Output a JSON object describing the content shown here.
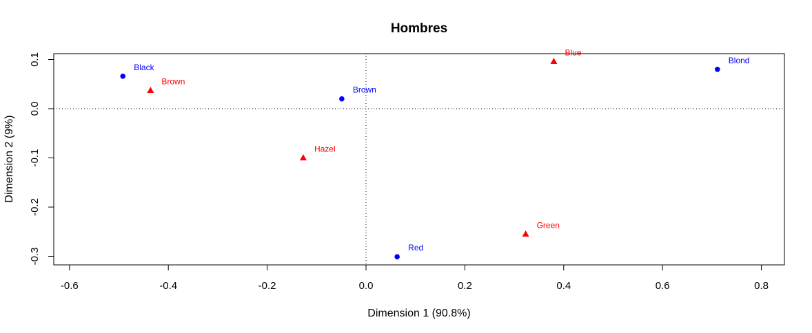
{
  "chart_data": {
    "type": "scatter",
    "title": "Hombres",
    "xlabel": "Dimension 1 (90.8%)",
    "ylabel": "Dimension 2 (9%)",
    "xlim": [
      -0.6,
      0.8
    ],
    "ylim": [
      -0.3,
      0.1
    ],
    "x_ticks": [
      "-0.6",
      "-0.4",
      "-0.2",
      "0.0",
      "0.2",
      "0.4",
      "0.6",
      "0.8"
    ],
    "y_ticks": [
      "-0.3",
      "-0.2",
      "-0.1",
      "0.0",
      "0.1"
    ],
    "grid": false,
    "reference_lines": {
      "x": 0,
      "y": 0,
      "style": "dotted"
    },
    "series": [
      {
        "marker": "circle",
        "color": "#0000ff",
        "points": [
          {
            "label": "Black",
            "x": -0.492,
            "y": 0.066
          },
          {
            "label": "Brown",
            "x": -0.049,
            "y": 0.02
          },
          {
            "label": "Red",
            "x": 0.063,
            "y": -0.301
          },
          {
            "label": "Blond",
            "x": 0.711,
            "y": 0.08
          }
        ]
      },
      {
        "marker": "triangle",
        "color": "#ff0000",
        "points": [
          {
            "label": "Brown",
            "x": -0.436,
            "y": 0.037
          },
          {
            "label": "Hazel",
            "x": -0.127,
            "y": -0.1
          },
          {
            "label": "Green",
            "x": 0.323,
            "y": -0.255
          },
          {
            "label": "Blue",
            "x": 0.38,
            "y": 0.096
          }
        ]
      }
    ]
  }
}
